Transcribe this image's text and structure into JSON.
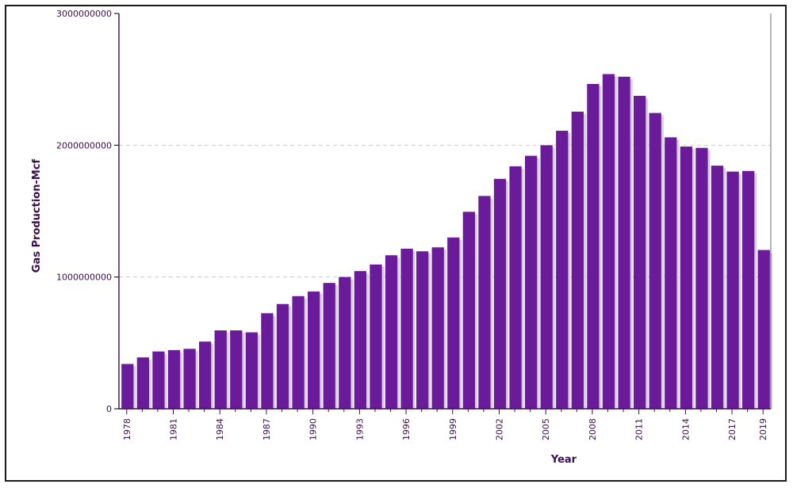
{
  "chart_data": {
    "type": "bar",
    "title": "",
    "xlabel": "Year",
    "ylabel": "Gas Production-Mcf",
    "ylim": [
      0,
      3000000000
    ],
    "yticks": [
      0,
      1000000000,
      2000000000,
      3000000000
    ],
    "ytick_labels": [
      "0",
      "1000000000",
      "2000000000",
      "3000000000"
    ],
    "grid": "horizontal dashed",
    "categories": [
      "1978",
      "1979",
      "1980",
      "1981",
      "1982",
      "1983",
      "1984",
      "1985",
      "1986",
      "1987",
      "1988",
      "1989",
      "1990",
      "1991",
      "1992",
      "1993",
      "1994",
      "1995",
      "1996",
      "1997",
      "1998",
      "1999",
      "2000",
      "2001",
      "2002",
      "2003",
      "2004",
      "2005",
      "2006",
      "2007",
      "2008",
      "2009",
      "2010",
      "2011",
      "2012",
      "2013",
      "2014",
      "2015",
      "2016",
      "2017",
      "2018",
      "2019"
    ],
    "xtick_labels": [
      "1978",
      "1981",
      "1984",
      "1987",
      "1990",
      "1993",
      "1996",
      "1999",
      "2002",
      "2005",
      "2008",
      "2011",
      "2014",
      "2017",
      "2019"
    ],
    "values": [
      340000000,
      390000000,
      435000000,
      445000000,
      455000000,
      510000000,
      595000000,
      595000000,
      580000000,
      725000000,
      795000000,
      855000000,
      890000000,
      955000000,
      1000000000,
      1045000000,
      1095000000,
      1165000000,
      1215000000,
      1195000000,
      1225000000,
      1300000000,
      1495000000,
      1615000000,
      1745000000,
      1840000000,
      1920000000,
      2000000000,
      2110000000,
      2255000000,
      2465000000,
      2540000000,
      2520000000,
      2375000000,
      2245000000,
      2060000000,
      1990000000,
      1980000000,
      1845000000,
      1800000000,
      1805000000,
      1205000000
    ],
    "bar_color": "#6a1b9a",
    "axis_color": "#3a0f4a"
  }
}
